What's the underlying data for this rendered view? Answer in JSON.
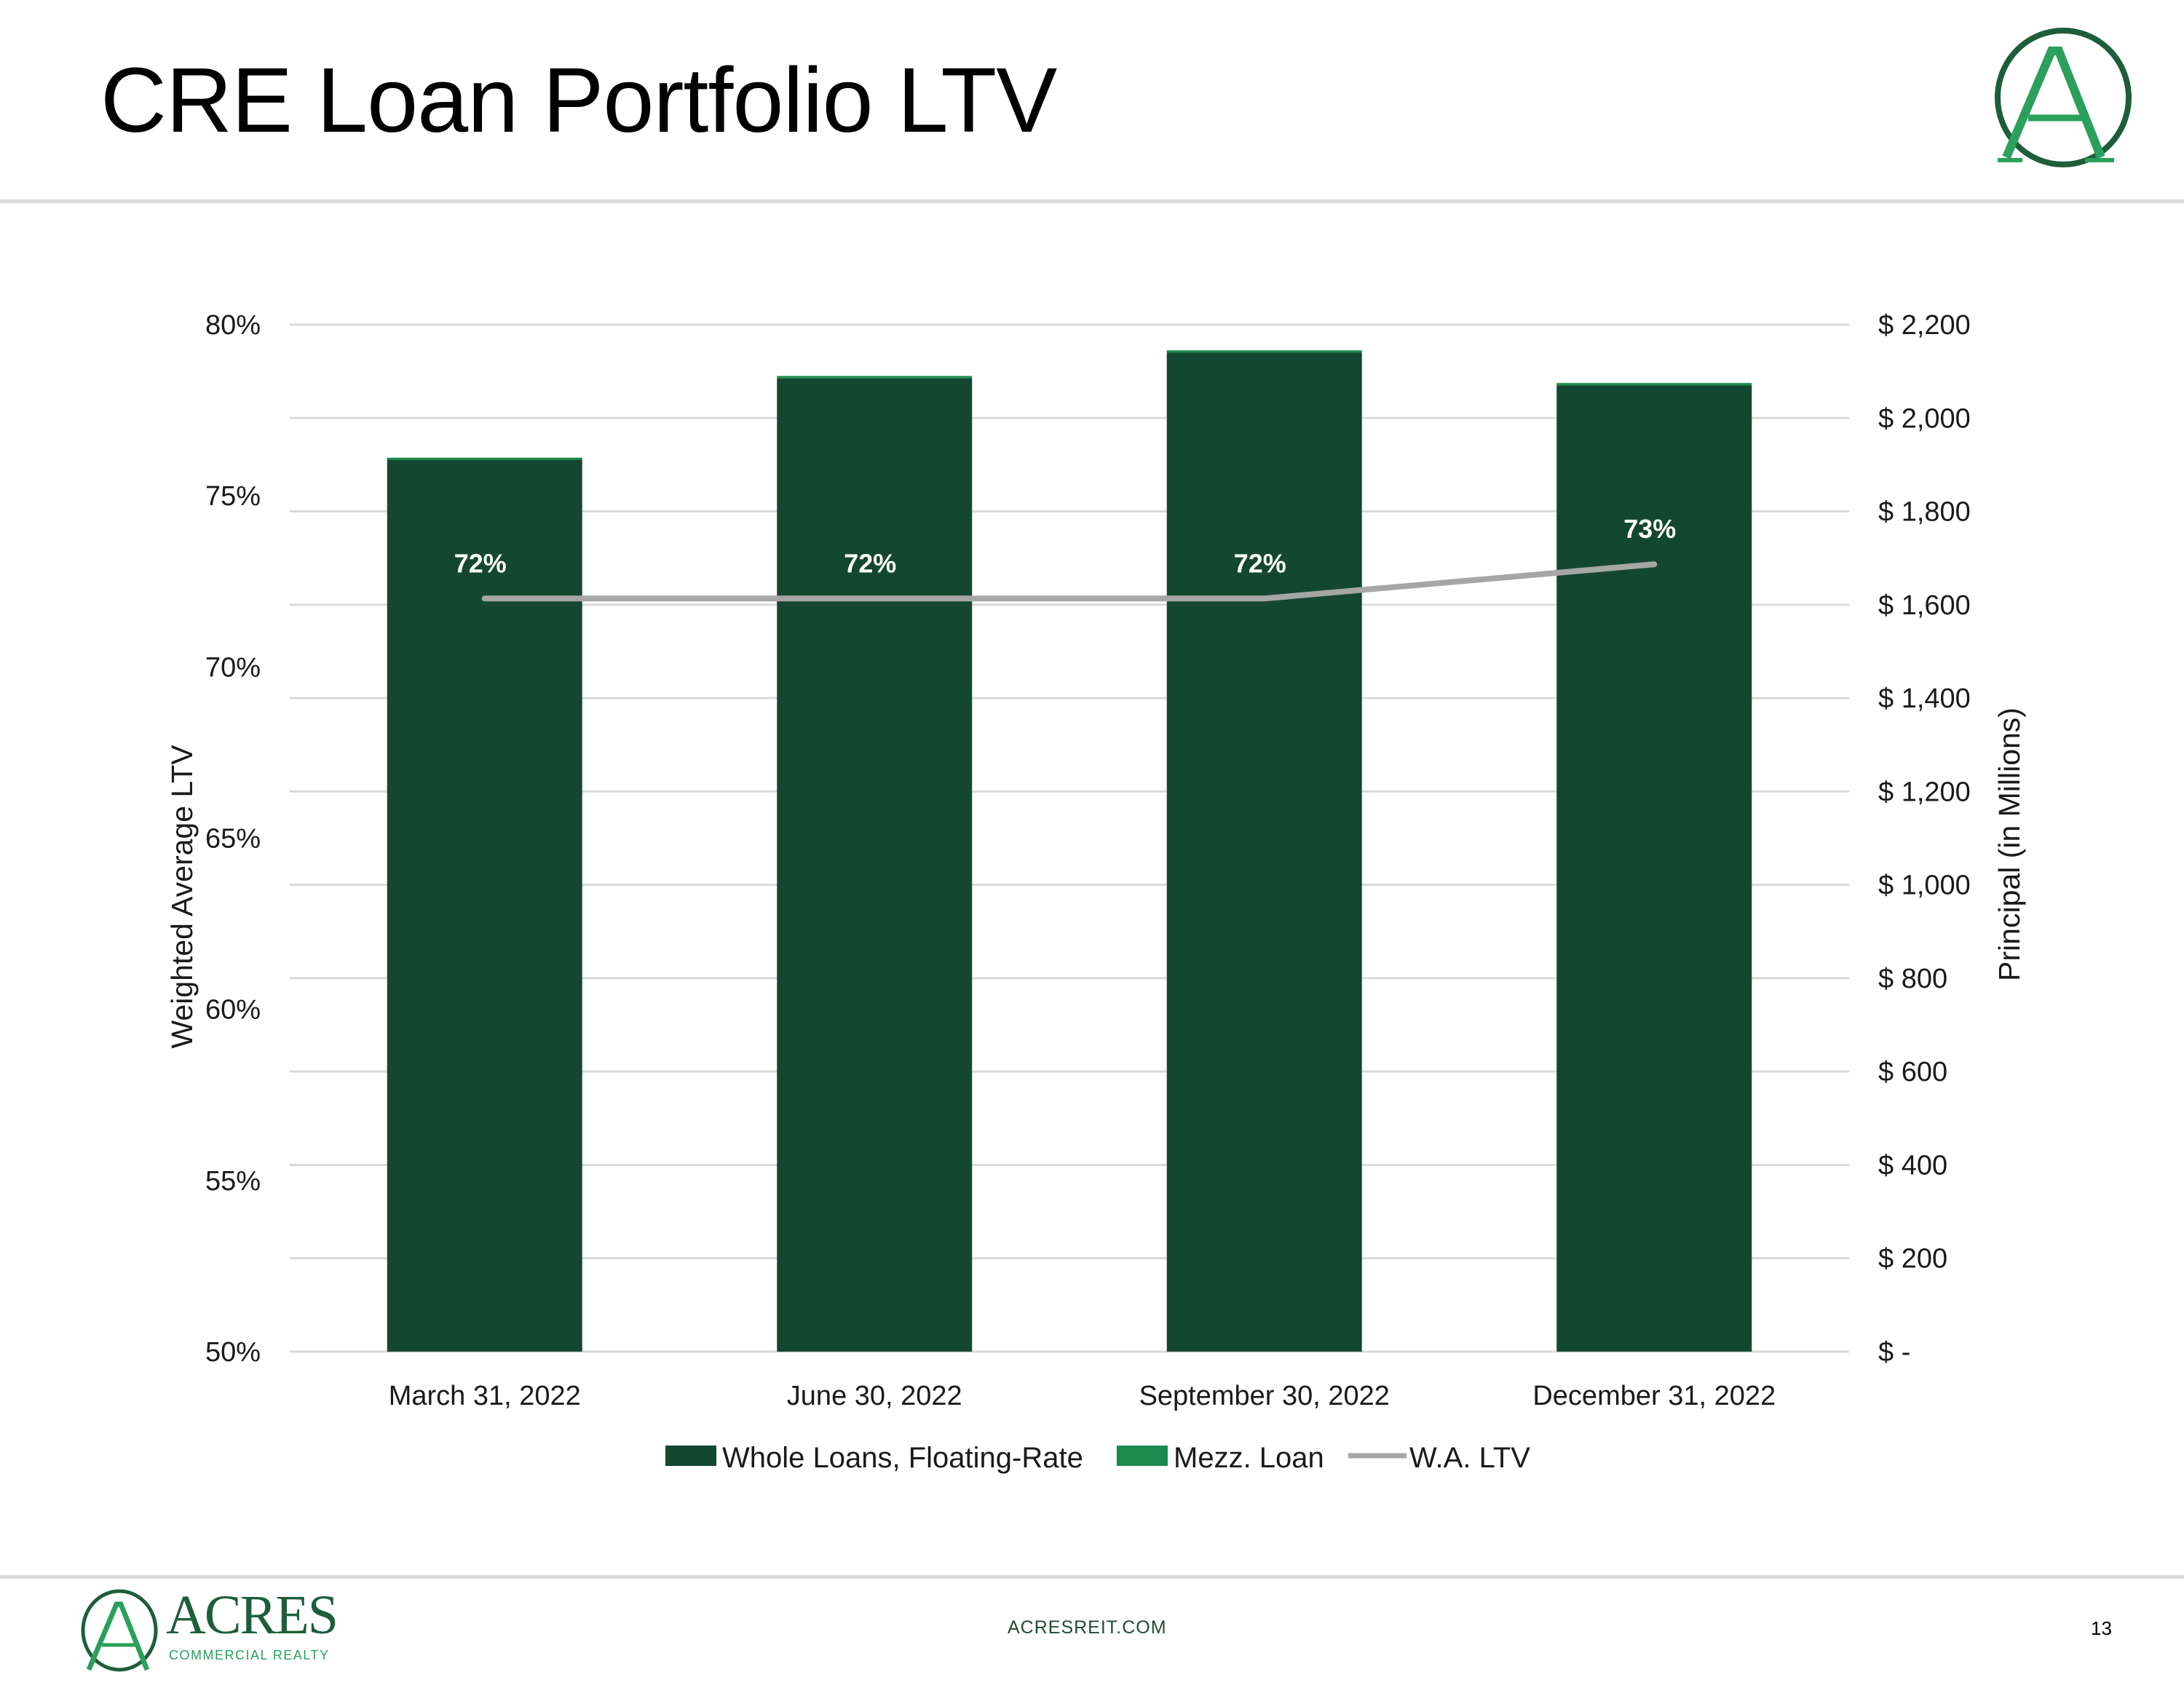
{
  "title": "CRE Loan Portfolio LTV",
  "footer": {
    "url": "ACRESREIT.COM",
    "page_number": "13",
    "logo_text": "ACRES",
    "logo_subtext": "COMMERCIAL REALTY"
  },
  "colors": {
    "whole_loans": "#144731",
    "mezz_loan": "#1b8a4c",
    "ltv_line": "#a6a6a6",
    "grid": "#d9d9d9",
    "brand_dark": "#1d5e3a",
    "brand_light": "#2aa05a"
  },
  "chart_data": {
    "type": "bar",
    "stacked": true,
    "categories": [
      "March 31, 2022",
      "June 30, 2022",
      "September 30, 2022",
      "December 31, 2022"
    ],
    "series": [
      {
        "name": "Whole Loans, Floating-Rate",
        "axis": "right",
        "values": [
          1910,
          2085,
          2140,
          2070
        ]
      },
      {
        "name": "Mezz. Loan",
        "axis": "right",
        "values": [
          5,
          5,
          5,
          5
        ]
      }
    ],
    "line_series": {
      "name": "W.A. LTV",
      "axis": "left",
      "values": [
        72,
        72,
        72,
        73
      ],
      "labels": [
        "72%",
        "72%",
        "72%",
        "73%"
      ]
    },
    "y_left": {
      "label": "Weighted Average LTV",
      "range": [
        50,
        80
      ],
      "ticks": [
        50,
        55,
        60,
        65,
        70,
        75,
        80
      ],
      "tick_labels": [
        "50%",
        "55%",
        "60%",
        "65%",
        "70%",
        "75%",
        "80%"
      ]
    },
    "y_right": {
      "label": "Principal (in Millions)",
      "range": [
        0,
        2200
      ],
      "ticks": [
        0,
        200,
        400,
        600,
        800,
        1000,
        1200,
        1400,
        1600,
        1800,
        2000,
        2200
      ],
      "tick_labels": [
        "$ -",
        "$ 200",
        "$ 400",
        "$ 600",
        "$ 800",
        "$ 1,000",
        "$ 1,200",
        "$ 1,400",
        "$ 1,600",
        "$ 1,800",
        "$ 2,000",
        "$ 2,200"
      ]
    },
    "legend": {
      "position": "bottom",
      "entries": [
        "Whole Loans, Floating-Rate",
        "Mezz. Loan",
        "W.A. LTV"
      ]
    },
    "grid": true
  }
}
